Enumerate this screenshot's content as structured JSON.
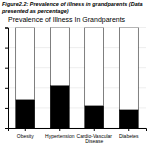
{
  "chart_data": {
    "type": "bar",
    "stacked": true,
    "title": "Prevalence of Illness In Grandparents",
    "subtitle": "Figure2.2: Prevalence of illness in grandparents (Data presented as percentage)",
    "categories": [
      "Obesity",
      "Hypertension",
      "Cardio-Vascular\nDisease",
      "Diabetes"
    ],
    "series": [
      {
        "color": "#000000",
        "values": [
          28,
          42,
          22,
          18
        ]
      },
      {
        "color": "#ffffff",
        "values": [
          72,
          58,
          78,
          82
        ]
      }
    ],
    "ylim": [
      0,
      100
    ],
    "yticks": [
      0,
      20,
      40,
      60,
      80,
      100
    ],
    "grid": true,
    "tick_labels": "x"
  }
}
